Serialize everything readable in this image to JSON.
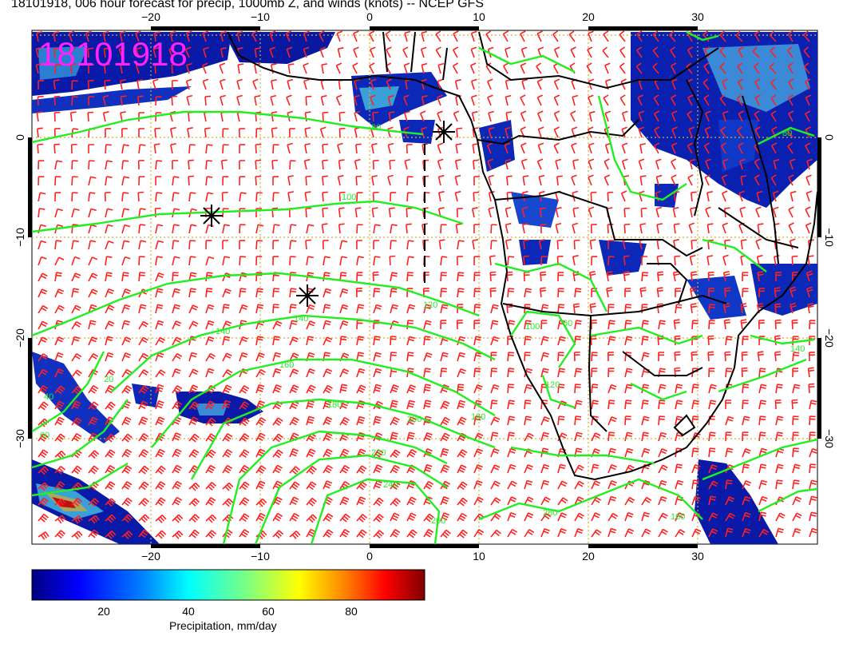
{
  "title": "18101918, 006 hour forecast for precip, 1000mb Z, and winds (knots) -- NCEP GFS",
  "stamp": "18101918",
  "map": {
    "lon_ticks": [
      "−20",
      "−10",
      "0",
      "10",
      "20",
      "30"
    ],
    "lat_ticks": [
      "0",
      "−10",
      "−20",
      "−30"
    ],
    "contour_labels": [
      "80",
      "100",
      "120",
      "140",
      "140",
      "160",
      "180",
      "180",
      "200",
      "220",
      "240",
      "260",
      "280",
      "20",
      "40",
      "60",
      "80",
      "100",
      "120",
      "140",
      "160",
      "60"
    ],
    "colors": {
      "contour": "#22ee22",
      "wind_barb": "#ff2020",
      "coastline": "#000000",
      "gridline": "#d4b030",
      "stamp": "#ff22ff"
    },
    "markers": [
      "storm-center-marker",
      "storm-center-marker",
      "storm-center-marker"
    ]
  },
  "colorbar": {
    "ticks": [
      "20",
      "40",
      "60",
      "80"
    ],
    "title": "Precipitation, mm/day",
    "colors": [
      "#00007f",
      "#0000ff",
      "#007fff",
      "#00ffff",
      "#7fff7f",
      "#ffff00",
      "#ff7f00",
      "#ff0000",
      "#7f0000"
    ]
  }
}
